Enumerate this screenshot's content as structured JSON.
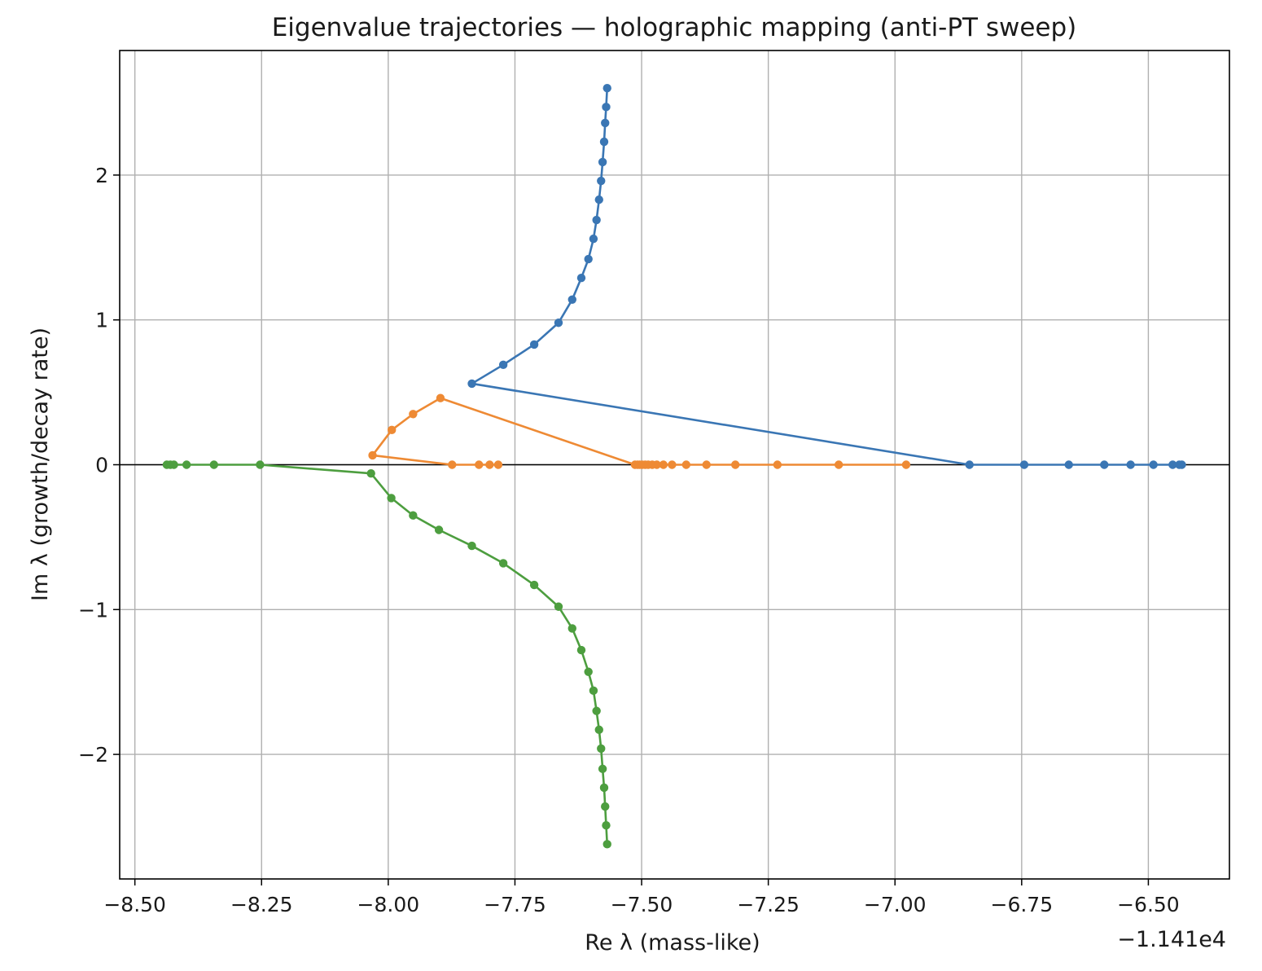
{
  "chart_data": {
    "type": "line",
    "title": "Eigenvalue trajectories — holographic mapping (anti-PT sweep)",
    "xlabel": "Re λ (mass-like)",
    "ylabel": "Im λ (growth/decay rate)",
    "x_offset_label": "−1.141e4",
    "xlim": [
      -8.53,
      -6.34
    ],
    "ylim": [
      -2.86,
      2.86
    ],
    "x_ticks": [
      -8.5,
      -8.25,
      -8.0,
      -7.75,
      -7.5,
      -7.25,
      -7.0,
      -6.75,
      -6.5
    ],
    "x_tick_labels": [
      "−8.50",
      "−8.25",
      "−8.00",
      "−7.75",
      "−7.50",
      "−7.25",
      "−7.00",
      "−6.75",
      "−6.50"
    ],
    "y_ticks": [
      -2,
      -1,
      0,
      1,
      2
    ],
    "y_tick_labels": [
      "−2",
      "−1",
      "0",
      "1",
      "2"
    ],
    "grid": true,
    "zero_line": true,
    "marker": "circle",
    "series": [
      {
        "color": "#3a76b4",
        "points": [
          [
            -6.434,
            0
          ],
          [
            -6.439,
            0
          ],
          [
            -6.452,
            0
          ],
          [
            -6.49,
            0
          ],
          [
            -6.535,
            0
          ],
          [
            -6.587,
            0
          ],
          [
            -6.657,
            0
          ],
          [
            -6.745,
            0
          ],
          [
            -6.853,
            0
          ],
          [
            -7.835,
            0.56
          ],
          [
            -7.773,
            0.69
          ],
          [
            -7.712,
            0.83
          ],
          [
            -7.664,
            0.98
          ],
          [
            -7.637,
            1.14
          ],
          [
            -7.619,
            1.29
          ],
          [
            -7.605,
            1.42
          ],
          [
            -7.595,
            1.56
          ],
          [
            -7.589,
            1.69
          ],
          [
            -7.584,
            1.83
          ],
          [
            -7.58,
            1.96
          ],
          [
            -7.577,
            2.09
          ],
          [
            -7.574,
            2.23
          ],
          [
            -7.572,
            2.36
          ],
          [
            -7.57,
            2.47
          ],
          [
            -7.568,
            2.6
          ]
        ]
      },
      {
        "color": "#ee8a34",
        "points": [
          [
            -6.978,
            0
          ],
          [
            -7.111,
            0
          ],
          [
            -7.232,
            0
          ],
          [
            -7.315,
            0
          ],
          [
            -7.372,
            0
          ],
          [
            -7.412,
            0
          ],
          [
            -7.44,
            0
          ],
          [
            -7.457,
            0
          ],
          [
            -7.47,
            0
          ],
          [
            -7.479,
            0
          ],
          [
            -7.487,
            0
          ],
          [
            -7.493,
            0
          ],
          [
            -7.499,
            0
          ],
          [
            -7.504,
            0
          ],
          [
            -7.508,
            0
          ],
          [
            -7.513,
            0
          ],
          [
            -7.897,
            0.46
          ],
          [
            -7.951,
            0.35
          ],
          [
            -7.993,
            0.24
          ],
          [
            -8.031,
            0.065
          ],
          [
            -7.874,
            0
          ],
          [
            -7.821,
            0
          ],
          [
            -7.8,
            0
          ],
          [
            -7.783,
            0
          ]
        ]
      },
      {
        "color": "#4d9e3f",
        "points": [
          [
            -8.437,
            0
          ],
          [
            -8.43,
            0
          ],
          [
            -8.423,
            0
          ],
          [
            -8.398,
            0
          ],
          [
            -8.344,
            0
          ],
          [
            -8.253,
            0
          ],
          [
            -8.034,
            -0.06
          ],
          [
            -7.994,
            -0.23
          ],
          [
            -7.951,
            -0.35
          ],
          [
            -7.9,
            -0.45
          ],
          [
            -7.835,
            -0.56
          ],
          [
            -7.773,
            -0.68
          ],
          [
            -7.712,
            -0.83
          ],
          [
            -7.664,
            -0.98
          ],
          [
            -7.637,
            -1.13
          ],
          [
            -7.619,
            -1.28
          ],
          [
            -7.605,
            -1.43
          ],
          [
            -7.595,
            -1.56
          ],
          [
            -7.589,
            -1.7
          ],
          [
            -7.584,
            -1.83
          ],
          [
            -7.58,
            -1.96
          ],
          [
            -7.577,
            -2.1
          ],
          [
            -7.574,
            -2.23
          ],
          [
            -7.572,
            -2.36
          ],
          [
            -7.57,
            -2.49
          ],
          [
            -7.568,
            -2.62
          ]
        ]
      }
    ]
  }
}
